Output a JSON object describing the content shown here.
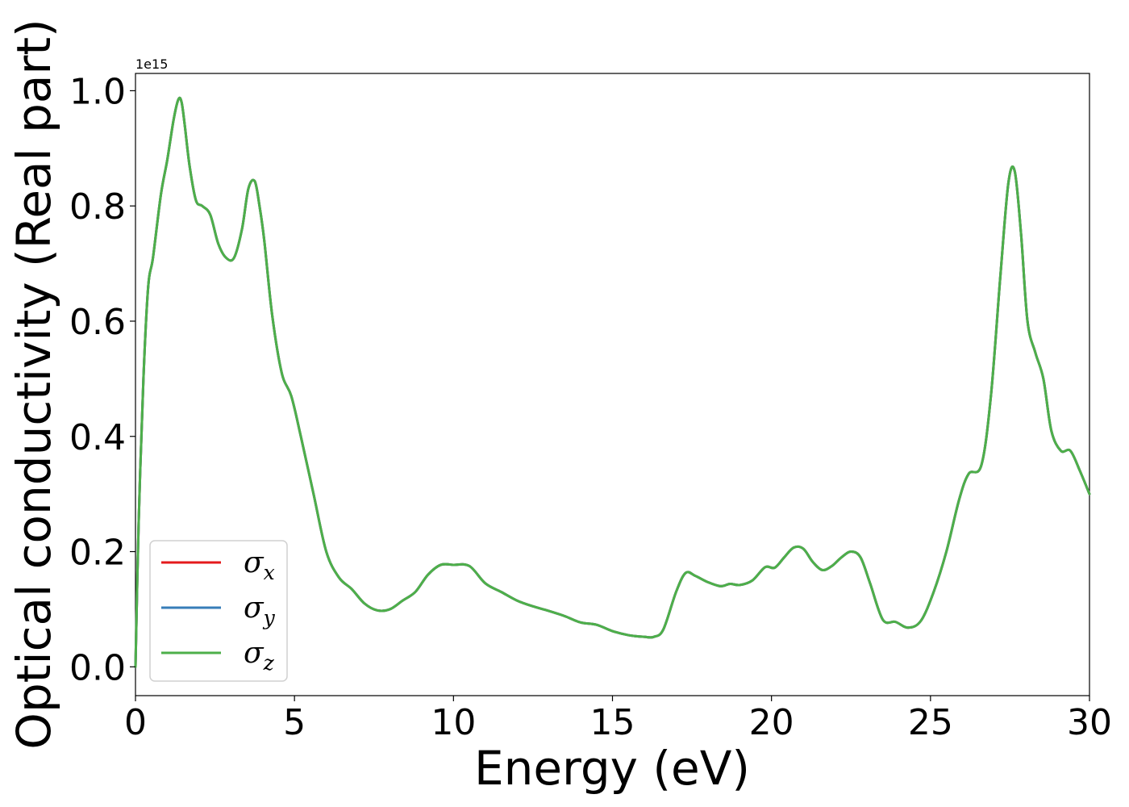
{
  "chart_data": {
    "type": "line",
    "title": "",
    "xlabel": "Energy (eV)",
    "ylabel": "Optical conductivity (Real part)",
    "y_offset_text": "1e15",
    "xlim": [
      0,
      30
    ],
    "ylim": [
      -0.05,
      1.03
    ],
    "x_ticks": [
      0,
      5,
      10,
      15,
      20,
      25,
      30
    ],
    "x_tick_labels": [
      "0",
      "5",
      "10",
      "15",
      "20",
      "25",
      "30"
    ],
    "y_ticks": [
      0.0,
      0.2,
      0.4,
      0.6,
      0.8,
      1.0
    ],
    "y_tick_labels": [
      "0.0",
      "0.2",
      "0.4",
      "0.6",
      "0.8",
      "1.0"
    ],
    "y_scale_factor": "1e15",
    "grid": false,
    "legend_position": "lower-left",
    "series": [
      {
        "name": "σx",
        "symbol": "σ",
        "subscript": "x",
        "color": "#e41a1c",
        "x": [
          0,
          0.1,
          0.25,
          0.4,
          0.55,
          0.8,
          1.0,
          1.2,
          1.35,
          1.45,
          1.55,
          1.7,
          1.9,
          2.1,
          2.35,
          2.6,
          2.85,
          3.1,
          3.35,
          3.55,
          3.75,
          3.9,
          4.05,
          4.3,
          4.6,
          4.9,
          5.2,
          5.6,
          6.0,
          6.4,
          6.8,
          7.2,
          7.6,
          8.0,
          8.4,
          8.8,
          9.2,
          9.6,
          10.0,
          10.5,
          11.0,
          11.5,
          12.0,
          12.5,
          13.0,
          13.5,
          14.0,
          14.5,
          15.0,
          15.5,
          16.0,
          16.3,
          16.6,
          17.0,
          17.3,
          17.6,
          18.0,
          18.4,
          18.7,
          19.0,
          19.4,
          19.8,
          20.1,
          20.4,
          20.7,
          21.0,
          21.3,
          21.6,
          21.9,
          22.2,
          22.5,
          22.8,
          23.1,
          23.5,
          23.9,
          24.3,
          24.7,
          25.1,
          25.5,
          25.9,
          26.2,
          26.6,
          26.9,
          27.2,
          27.45,
          27.65,
          27.85,
          28.05,
          28.3,
          28.55,
          28.8,
          29.1,
          29.4,
          29.7,
          30.0
        ],
        "y": [
          0,
          0.25,
          0.5,
          0.66,
          0.71,
          0.82,
          0.88,
          0.95,
          0.985,
          0.98,
          0.94,
          0.87,
          0.81,
          0.8,
          0.785,
          0.735,
          0.71,
          0.71,
          0.76,
          0.83,
          0.843,
          0.8,
          0.74,
          0.61,
          0.51,
          0.47,
          0.4,
          0.3,
          0.2,
          0.155,
          0.135,
          0.11,
          0.098,
          0.1,
          0.115,
          0.13,
          0.16,
          0.177,
          0.177,
          0.175,
          0.145,
          0.13,
          0.115,
          0.105,
          0.097,
          0.088,
          0.077,
          0.073,
          0.062,
          0.055,
          0.052,
          0.052,
          0.065,
          0.13,
          0.163,
          0.158,
          0.147,
          0.14,
          0.144,
          0.142,
          0.15,
          0.173,
          0.172,
          0.19,
          0.207,
          0.205,
          0.182,
          0.168,
          0.175,
          0.19,
          0.2,
          0.19,
          0.145,
          0.082,
          0.078,
          0.068,
          0.08,
          0.13,
          0.2,
          0.29,
          0.335,
          0.35,
          0.47,
          0.68,
          0.84,
          0.86,
          0.75,
          0.6,
          0.545,
          0.5,
          0.41,
          0.375,
          0.375,
          0.34,
          0.3
        ]
      },
      {
        "name": "σy",
        "symbol": "σ",
        "subscript": "y",
        "color": "#377eb8",
        "same_as": "σx"
      },
      {
        "name": "σz",
        "symbol": "σ",
        "subscript": "z",
        "color": "#4daf4a",
        "same_as": "σx"
      }
    ]
  }
}
